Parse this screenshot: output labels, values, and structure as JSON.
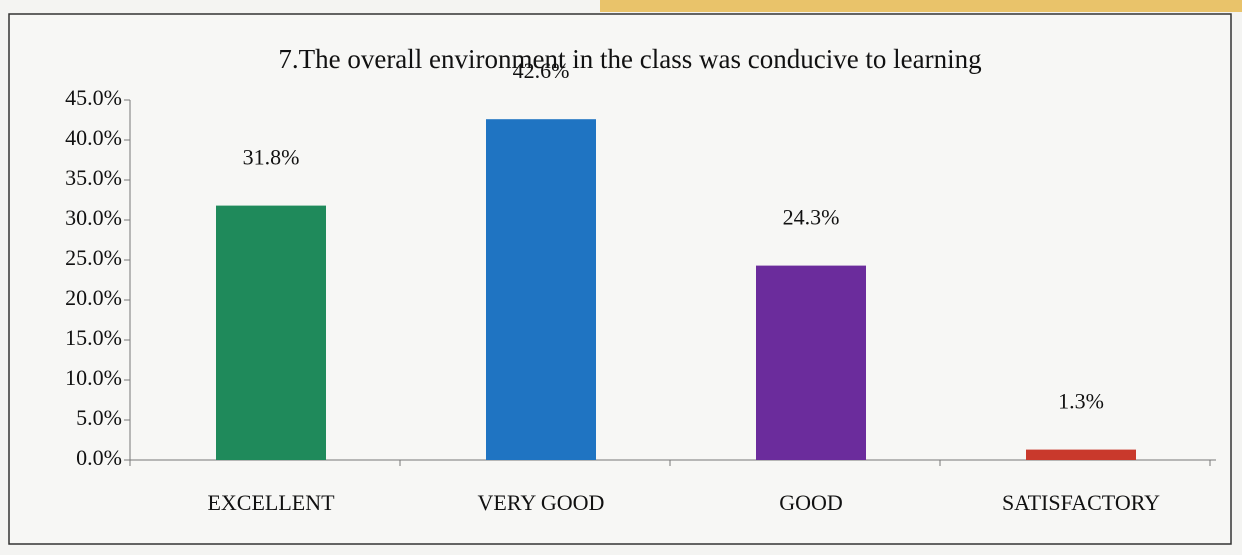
{
  "chart_data": {
    "type": "bar",
    "title": "7.The overall environment in the class was conducive to learning",
    "categories": [
      "EXCELLENT",
      "VERY GOOD",
      "GOOD",
      "SATISFACTORY"
    ],
    "values": [
      31.8,
      42.6,
      24.3,
      1.3
    ],
    "value_labels": [
      "31.8%",
      "42.6%",
      "24.3%",
      "1.3%"
    ],
    "colors": [
      "#1f8a5b",
      "#1f74c2",
      "#6b2c9c",
      "#c9392c"
    ],
    "ylim": [
      0,
      45
    ],
    "yticks": [
      {
        "value": 0,
        "label": "0.0%"
      },
      {
        "value": 5,
        "label": "5.0%"
      },
      {
        "value": 10,
        "label": "10.0%"
      },
      {
        "value": 15,
        "label": "15.0%"
      },
      {
        "value": 20,
        "label": "20.0%"
      },
      {
        "value": 25,
        "label": "25.0%"
      },
      {
        "value": 30,
        "label": "30.0%"
      },
      {
        "value": 35,
        "label": "35.0%"
      },
      {
        "value": 40,
        "label": "40.0%"
      },
      {
        "value": 45,
        "label": "45.0%"
      }
    ],
    "grid": false
  }
}
